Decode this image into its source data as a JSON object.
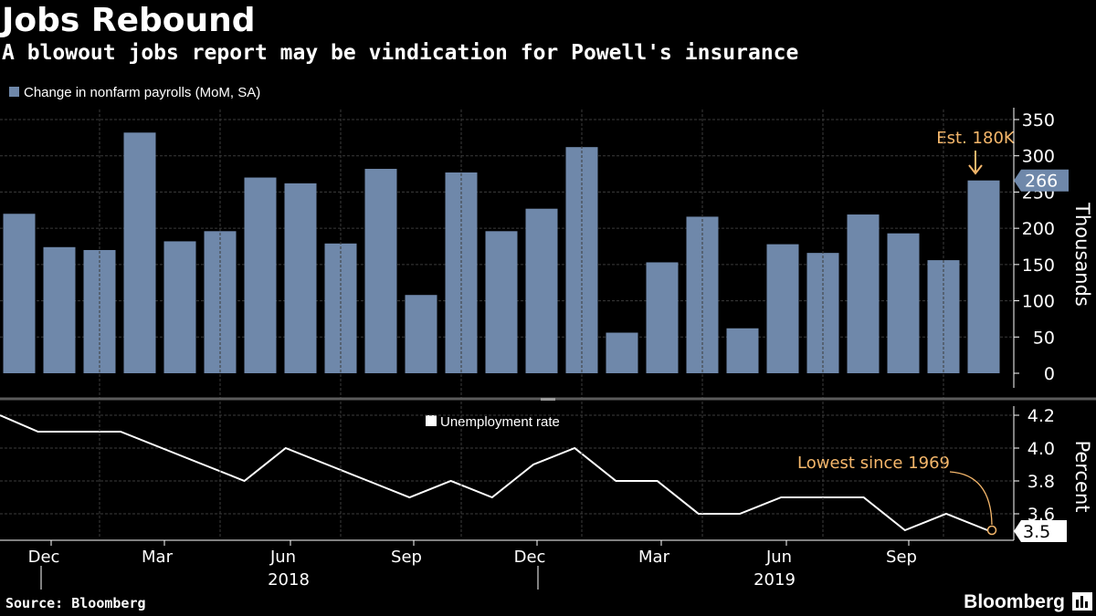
{
  "title": "Jobs Rebound",
  "subtitle": "A blowout jobs report may be vindication for Powell's insurance",
  "source": "Source: Bloomberg",
  "brand": "Bloomberg",
  "brand_icon": "bloomberg-terminal-icon",
  "colors": {
    "bar": "#6f88aa",
    "line": "#ffffff",
    "annotation": "#f5b76b",
    "grid": "#3b3b3b",
    "divider": "#5a5a5a"
  },
  "chart_data": [
    {
      "type": "bar",
      "legend": "Change in nonfarm payrolls (MoM, SA)",
      "ylabel": "Thousands",
      "ylim": [
        0,
        350
      ],
      "yticks": [
        0,
        50,
        100,
        150,
        200,
        250,
        300,
        350
      ],
      "grid": true,
      "categories": [
        "2017-11",
        "2017-12",
        "2018-01",
        "2018-02",
        "2018-03",
        "2018-04",
        "2018-05",
        "2018-06",
        "2018-07",
        "2018-08",
        "2018-09",
        "2018-10",
        "2018-11",
        "2018-12",
        "2019-01",
        "2019-02",
        "2019-03",
        "2019-04",
        "2019-05",
        "2019-06",
        "2019-07",
        "2019-08",
        "2019-09",
        "2019-10",
        "2019-11"
      ],
      "values": [
        220,
        174,
        170,
        332,
        182,
        196,
        270,
        262,
        179,
        282,
        108,
        277,
        196,
        227,
        312,
        56,
        153,
        216,
        62,
        178,
        166,
        219,
        193,
        156,
        266
      ],
      "last_value_label": "266",
      "annotation": "Est. 180K"
    },
    {
      "type": "line",
      "legend": "Unemployment rate",
      "ylabel": "Percent",
      "ylim": [
        3.4,
        4.25
      ],
      "yticks": [
        3.6,
        3.8,
        4.0,
        4.2
      ],
      "ytick_labels": [
        "3.6",
        "3.8",
        "4.0",
        "4.2"
      ],
      "grid": true,
      "x": [
        "2017-11",
        "2017-12",
        "2018-01",
        "2018-02",
        "2018-03",
        "2018-04",
        "2018-05",
        "2018-06",
        "2018-07",
        "2018-08",
        "2018-09",
        "2018-10",
        "2018-11",
        "2018-12",
        "2019-01",
        "2019-02",
        "2019-03",
        "2019-04",
        "2019-05",
        "2019-06",
        "2019-07",
        "2019-08",
        "2019-09",
        "2019-10",
        "2019-11"
      ],
      "values": [
        4.2,
        4.1,
        4.1,
        4.1,
        4.0,
        3.9,
        3.8,
        4.0,
        3.9,
        3.8,
        3.7,
        3.8,
        3.7,
        3.9,
        4.0,
        3.8,
        3.8,
        3.6,
        3.6,
        3.7,
        3.7,
        3.7,
        3.5,
        3.6,
        3.5
      ],
      "last_value_label": "3.5",
      "annotation": "Lowest since 1969"
    }
  ],
  "x_axis": {
    "month_labels": [
      {
        "label": "Dec",
        "index": 1
      },
      {
        "label": "Mar",
        "index": 4
      },
      {
        "label": "Jun",
        "index": 7
      },
      {
        "label": "Sep",
        "index": 10
      },
      {
        "label": "Dec",
        "index": 13
      },
      {
        "label": "Mar",
        "index": 16
      },
      {
        "label": "Jun",
        "index": 19
      },
      {
        "label": "Sep",
        "index": 22
      }
    ],
    "year_labels": [
      {
        "label": "2018",
        "index": 7
      },
      {
        "label": "2019",
        "index": 19
      }
    ]
  }
}
